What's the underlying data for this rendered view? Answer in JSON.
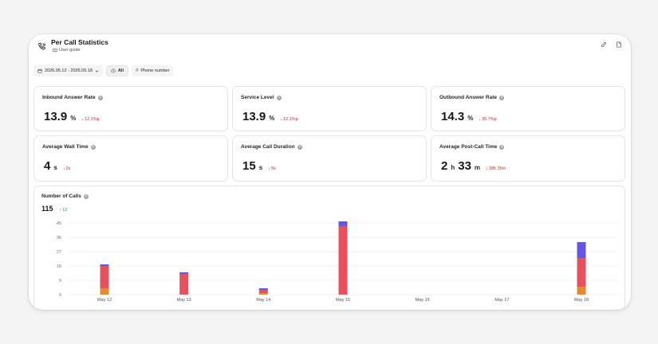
{
  "header": {
    "title": "Per Call Statistics",
    "guide_label": "User guide"
  },
  "filters": {
    "date_range": "2026.05.12 - 2026.05.18",
    "scope": "All",
    "phone_filter": "Phone number"
  },
  "kpis": [
    {
      "title": "Inbound Answer Rate",
      "value": "13.9",
      "unit": "%",
      "delta": "12.1%p",
      "direction": "down"
    },
    {
      "title": "Service Level",
      "value": "13.9",
      "unit": "%",
      "delta": "12.1%p",
      "direction": "down"
    },
    {
      "title": "Outbound Answer Rate",
      "value": "14.3",
      "unit": "%",
      "delta": "35.7%p",
      "direction": "down"
    },
    {
      "title": "Average Wait Time",
      "value": "4",
      "unit": "s",
      "delta": "2s",
      "direction": "down"
    },
    {
      "title": "Average Call Duration",
      "value": "15",
      "unit": "s",
      "delta": "9s",
      "direction": "down"
    },
    {
      "title": "Average Post-Call Time",
      "value_h": "2",
      "unit_h": "h",
      "value_m": "33",
      "unit_m": "m",
      "delta": "18h 35m",
      "direction": "down"
    }
  ],
  "calls": {
    "title": "Number of Calls",
    "total": "115",
    "delta": "12",
    "direction": "up"
  },
  "colors": {
    "red": "#e5525e",
    "purple": "#6356e5",
    "orange": "#e68a2e",
    "down": "#dc2626",
    "up": "#16a34a"
  },
  "chart_data": {
    "type": "bar",
    "stacked": true,
    "categories": [
      "May 12",
      "May 13",
      "May 14",
      "May 15",
      "May 16",
      "May 17",
      "May 18"
    ],
    "series": [
      {
        "color": "#e68a2e",
        "values": [
          4,
          0,
          1,
          0,
          0,
          0,
          5
        ]
      },
      {
        "color": "#e5525e",
        "values": [
          14,
          13,
          2,
          43,
          0,
          0,
          18
        ]
      },
      {
        "color": "#6356e5",
        "values": [
          1,
          1,
          1,
          3,
          0,
          0,
          10
        ]
      }
    ],
    "yticks": [
      "0",
      "9",
      "18",
      "27",
      "36",
      "45"
    ],
    "ylim": [
      0,
      45
    ],
    "grid": true
  }
}
